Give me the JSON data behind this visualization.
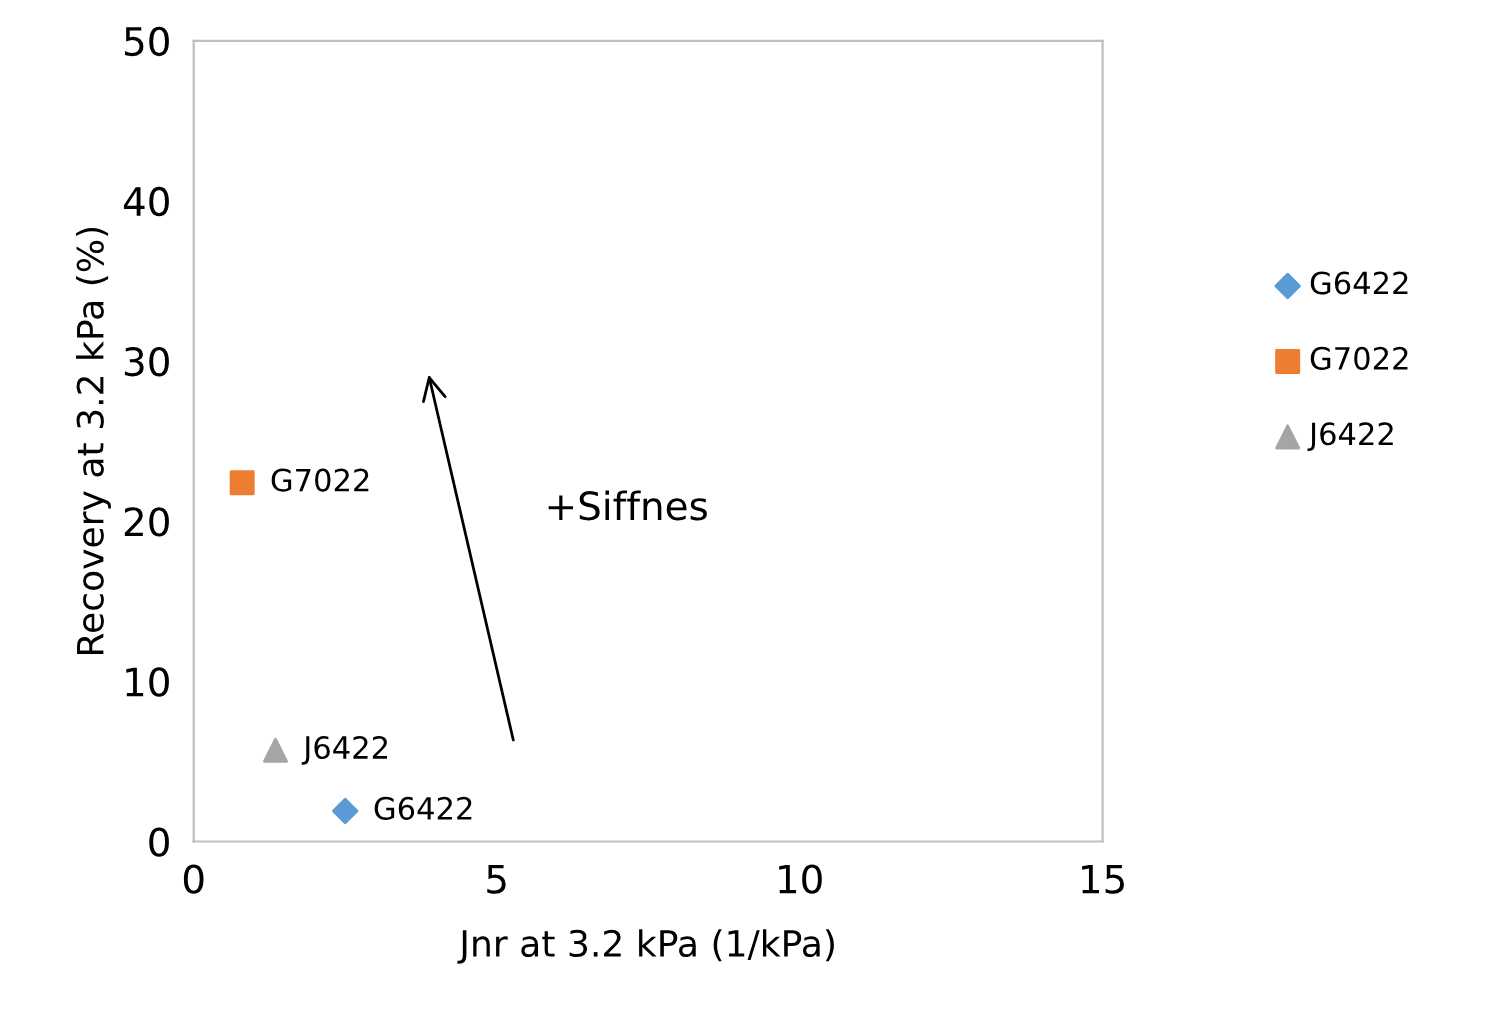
{
  "chart_data": {
    "type": "scatter",
    "xlabel": "Jnr at 3.2 kPa (1/kPa)",
    "ylabel": "Recovery at 3.2 kPa (%)",
    "xlim": [
      0,
      15
    ],
    "xticks": [
      0,
      5,
      10,
      15
    ],
    "ylim": [
      0,
      50
    ],
    "yticks": [
      0,
      10,
      20,
      30,
      40,
      50
    ],
    "grid": false,
    "legend": "right",
    "series": [
      {
        "name": "G6422",
        "color": "#5b9bd5",
        "marker": "diamond",
        "x": [
          2.5
        ],
        "values": [
          1.9
        ]
      },
      {
        "name": "G7022",
        "color": "#ed7d31",
        "marker": "square",
        "x": [
          0.8
        ],
        "values": [
          22.4
        ]
      },
      {
        "name": "J6422",
        "color": "#a5a5a5",
        "marker": "triangle",
        "x": [
          1.35
        ],
        "values": [
          5.7
        ]
      }
    ],
    "annotations": [
      "+Siffnes"
    ]
  }
}
